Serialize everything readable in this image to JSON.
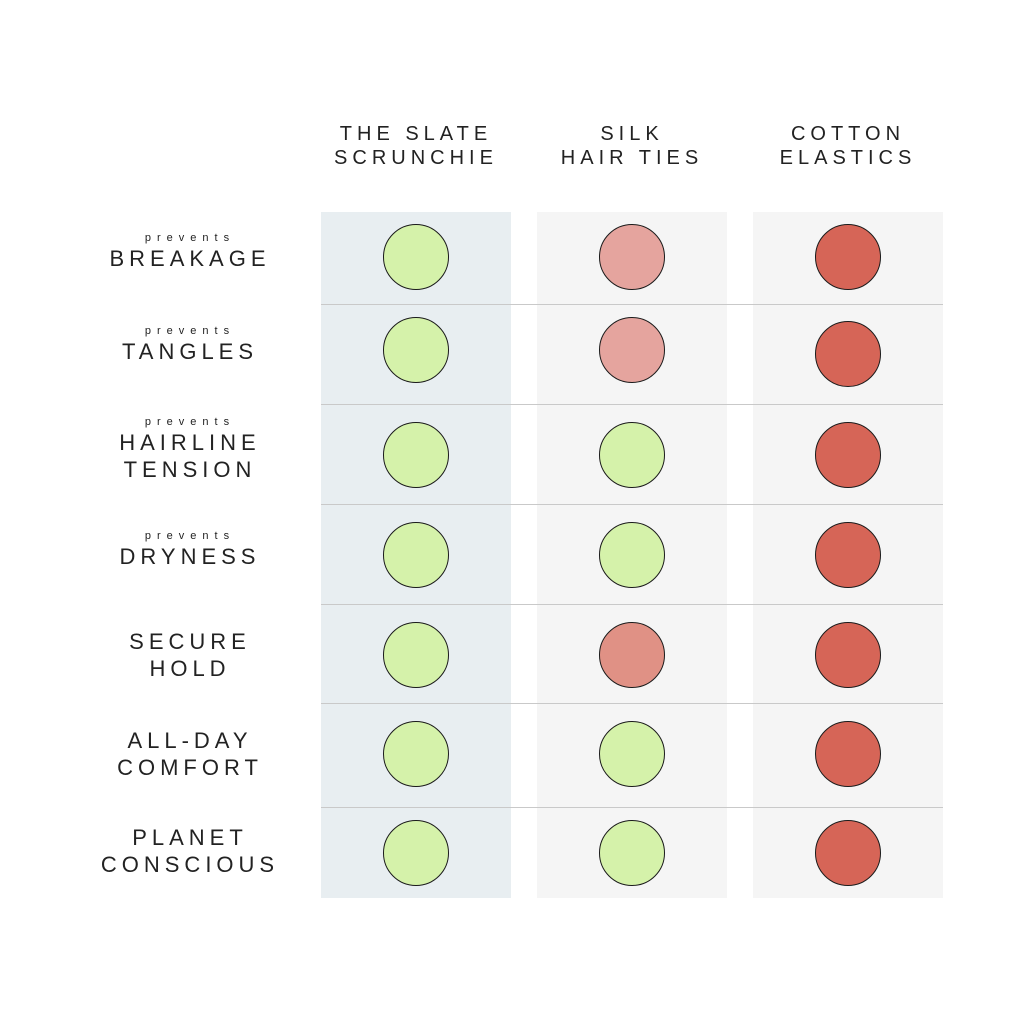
{
  "columns": [
    {
      "line1": "THE SLATE",
      "line2": "SCRUNCHIE"
    },
    {
      "line1": "SILK",
      "line2": "HAIR TIES"
    },
    {
      "line1": "COTTON",
      "line2": "ELASTICS"
    }
  ],
  "rows": [
    {
      "small": "prevents",
      "line1": "BREAKAGE",
      "line2": ""
    },
    {
      "small": "prevents",
      "line1": "TANGLES",
      "line2": ""
    },
    {
      "small": "prevents",
      "line1": "HAIRLINE",
      "line2": "TENSION"
    },
    {
      "small": "prevents",
      "line1": "DRYNESS",
      "line2": ""
    },
    {
      "small": "",
      "line1": "SECURE",
      "line2": "HOLD"
    },
    {
      "small": "",
      "line1": "ALL-DAY",
      "line2": "COMFORT"
    },
    {
      "small": "",
      "line1": "PLANET",
      "line2": "CONSCIOUS"
    }
  ],
  "colors": {
    "yes": "#d5f2aa",
    "partial": "#e5a49e",
    "partial_alt": "#e09185",
    "no": "#d66557"
  },
  "ratings": [
    [
      "yes",
      "partial",
      "no"
    ],
    [
      "yes",
      "partial",
      "no"
    ],
    [
      "yes",
      "yes",
      "no"
    ],
    [
      "yes",
      "yes",
      "no"
    ],
    [
      "yes",
      "partial_alt",
      "no"
    ],
    [
      "yes",
      "yes",
      "no"
    ],
    [
      "yes",
      "yes",
      "no"
    ]
  ]
}
